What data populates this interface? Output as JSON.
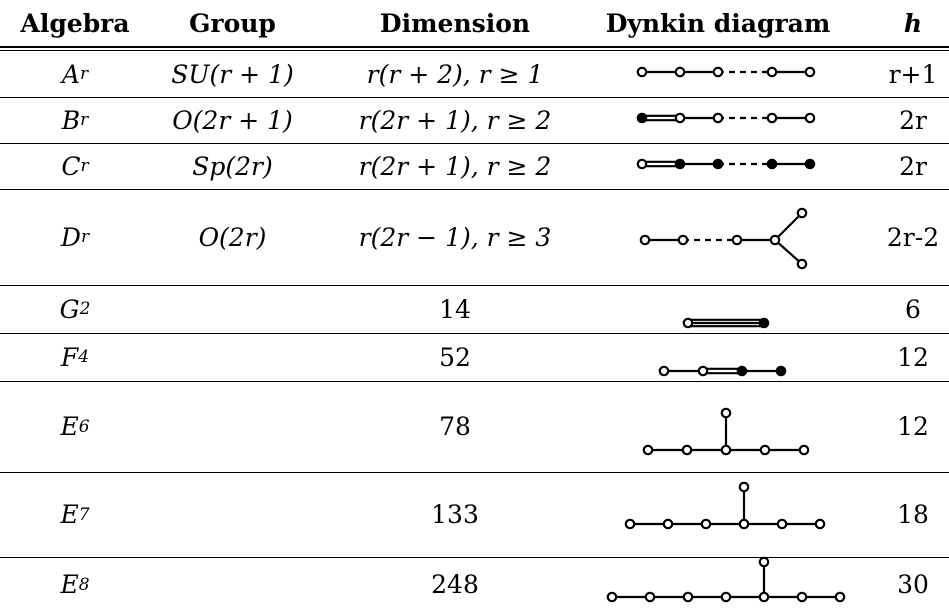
{
  "headers": {
    "algebra": "Algebra",
    "group": "Group",
    "dimension": "Dimension",
    "dynkin": "Dynkin diagram",
    "h": "h"
  },
  "rows": [
    {
      "algebra": {
        "base": "A",
        "sub": "r"
      },
      "group": "SU(r + 1)",
      "dimension": "r(r + 2), r ≥ 1",
      "h": "r+1",
      "diagram": "A_r"
    },
    {
      "algebra": {
        "base": "B",
        "sub": "r"
      },
      "group": "O(2r + 1)",
      "dimension": "r(2r + 1), r ≥ 2",
      "h": "2r",
      "diagram": "B_r"
    },
    {
      "algebra": {
        "base": "C",
        "sub": "r"
      },
      "group": "Sp(2r)",
      "dimension": "r(2r + 1), r ≥ 2",
      "h": "2r",
      "diagram": "C_r"
    },
    {
      "algebra": {
        "base": "D",
        "sub": "r"
      },
      "group": "O(2r)",
      "dimension": "r(2r − 1), r ≥ 3",
      "h": "2r-2",
      "diagram": "D_r"
    },
    {
      "algebra": {
        "base": "G",
        "sub": "2"
      },
      "group": "",
      "dimension": "14",
      "h": "6",
      "diagram": "G_2"
    },
    {
      "algebra": {
        "base": "F",
        "sub": "4"
      },
      "group": "",
      "dimension": "52",
      "h": "12",
      "diagram": "F_4"
    },
    {
      "algebra": {
        "base": "E",
        "sub": "6"
      },
      "group": "",
      "dimension": "78",
      "h": "12",
      "diagram": "E_6"
    },
    {
      "algebra": {
        "base": "E",
        "sub": "7"
      },
      "group": "",
      "dimension": "133",
      "h": "18",
      "diagram": "E_7"
    },
    {
      "algebra": {
        "base": "E",
        "sub": "8"
      },
      "group": "",
      "dimension": "248",
      "h": "30",
      "diagram": "E_8"
    }
  ]
}
